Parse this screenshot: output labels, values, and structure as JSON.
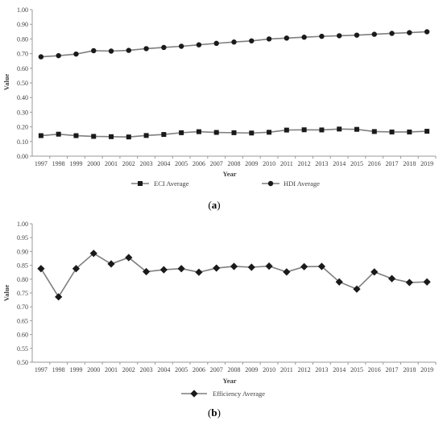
{
  "colors": {
    "series": "#1a1a1a",
    "line": "#7f7f7f",
    "axis": "#9a9a9a",
    "text": "#404040"
  },
  "chart_data": [
    {
      "type": "line",
      "panel_label": "a",
      "x": [
        "1997",
        "1998",
        "1999",
        "2000",
        "2001",
        "2002",
        "2003",
        "2004",
        "2005",
        "2006",
        "2007",
        "2008",
        "2009",
        "2010",
        "2011",
        "2012",
        "2013",
        "2014",
        "2015",
        "2016",
        "2017",
        "2018",
        "2019"
      ],
      "series": [
        {
          "name": "ECI Average",
          "marker": "square",
          "values": [
            0.14,
            0.15,
            0.14,
            0.135,
            0.133,
            0.131,
            0.141,
            0.148,
            0.16,
            0.167,
            0.162,
            0.16,
            0.158,
            0.163,
            0.178,
            0.18,
            0.179,
            0.185,
            0.183,
            0.168,
            0.165,
            0.165,
            0.17
          ]
        },
        {
          "name": "HDI Average",
          "marker": "circle",
          "values": [
            0.678,
            0.686,
            0.697,
            0.72,
            0.717,
            0.722,
            0.734,
            0.742,
            0.75,
            0.76,
            0.77,
            0.779,
            0.787,
            0.8,
            0.806,
            0.812,
            0.818,
            0.822,
            0.826,
            0.832,
            0.838,
            0.843,
            0.849
          ]
        }
      ],
      "xlabel": "Year",
      "ylabel": "Value",
      "ylim": [
        0,
        1
      ],
      "yticks": [
        "0.00",
        "0.10",
        "0.20",
        "0.30",
        "0.40",
        "0.50",
        "0.60",
        "0.70",
        "0.80",
        "0.90",
        "1.00"
      ],
      "grid": false,
      "legend": "bottom"
    },
    {
      "type": "line",
      "panel_label": "b",
      "x": [
        "1997",
        "1998",
        "1999",
        "2000",
        "2001",
        "2002",
        "2003",
        "2004",
        "2005",
        "2006",
        "2007",
        "2008",
        "2009",
        "2010",
        "2011",
        "2012",
        "2013",
        "2014",
        "2015",
        "2016",
        "2017",
        "2018",
        "2019"
      ],
      "series": [
        {
          "name": "Efficiency Average",
          "marker": "diamond",
          "values": [
            0.838,
            0.736,
            0.838,
            0.893,
            0.855,
            0.878,
            0.827,
            0.834,
            0.838,
            0.825,
            0.84,
            0.846,
            0.843,
            0.847,
            0.826,
            0.845,
            0.846,
            0.79,
            0.764,
            0.826,
            0.802,
            0.788,
            0.79
          ]
        }
      ],
      "xlabel": "Year",
      "ylabel": "Value",
      "ylim": [
        0.5,
        1
      ],
      "yticks": [
        "0.50",
        "0.55",
        "0.60",
        "0.65",
        "0.70",
        "0.75",
        "0.80",
        "0.85",
        "0.90",
        "0.95",
        "1.00"
      ],
      "grid": false,
      "legend": "bottom"
    }
  ]
}
